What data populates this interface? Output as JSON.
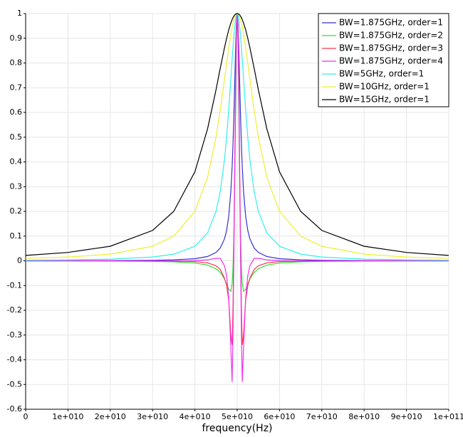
{
  "chart_data": {
    "type": "line",
    "x_label": "frequency(Hz)",
    "x": [
      0,
      10000000000.0,
      20000000000.0,
      30000000000.0,
      35000000000.0,
      40000000000.0,
      43000000000.0,
      45000000000.0,
      46000000000.0,
      47000000000.0,
      47500000000.0,
      48000000000.0,
      48500000000.0,
      48800000000.0,
      49000000000.0,
      49200000000.0,
      49400000000.0,
      49600000000.0,
      49800000000.0,
      50000000000.0,
      50200000000.0,
      50400000000.0,
      50600000000.0,
      50800000000.0,
      51000000000.0,
      51200000000.0,
      51500000000.0,
      52000000000.0,
      52500000000.0,
      53000000000.0,
      54000000000.0,
      55000000000.0,
      57000000000.0,
      60000000000.0,
      65000000000.0,
      70000000000.0,
      80000000000.0,
      90000000000.0,
      100000000000.0
    ],
    "series": [
      {
        "name": "BW=1.875GHz, order=1",
        "color": "#3333cc",
        "values": [
          0.00035,
          0.00055,
          0.001,
          0.0022,
          0.0039,
          0.0087,
          0.0176,
          0.034,
          0.052,
          0.089,
          0.123,
          0.18,
          0.281,
          0.379,
          0.468,
          0.579,
          0.709,
          0.846,
          0.957,
          1,
          0.957,
          0.846,
          0.709,
          0.579,
          0.468,
          0.379,
          0.281,
          0.18,
          0.123,
          0.089,
          0.052,
          0.034,
          0.0176,
          0.0087,
          0.0039,
          0.0022,
          0.001,
          0.00055,
          0.00035
        ]
      },
      {
        "name": "BW=1.875GHz, order=2",
        "color": "#33dd33",
        "values": [
          -0.00035,
          -0.00055,
          -0.001,
          -0.0022,
          -0.0039,
          -0.0086,
          -0.017,
          -0.032,
          -0.047,
          -0.073,
          -0.093,
          -0.115,
          -0.123,
          -0.092,
          -0.03,
          0.091,
          0.297,
          0.586,
          0.873,
          1,
          0.873,
          0.586,
          0.297,
          0.091,
          -0.03,
          -0.092,
          -0.123,
          -0.115,
          -0.093,
          -0.073,
          -0.047,
          -0.032,
          -0.017,
          -0.0086,
          -0.0039,
          -0.0022,
          -0.001,
          -0.00055,
          -0.00035
        ]
      },
      {
        "name": "BW=1.875GHz, order=3",
        "color": "#ff3355",
        "values": [
          0,
          0,
          0,
          -0.0005,
          -0.001,
          -0.003,
          -0.008,
          -0.02,
          -0.035,
          -0.07,
          -0.1,
          -0.16,
          -0.3,
          -0.34,
          -0.2,
          0.05,
          0.35,
          0.7,
          0.93,
          1,
          0.93,
          0.7,
          0.35,
          0.05,
          -0.2,
          -0.34,
          -0.3,
          -0.16,
          -0.1,
          -0.07,
          -0.035,
          -0.02,
          -0.008,
          -0.003,
          -0.001,
          -0.0005,
          0,
          0,
          0
        ]
      },
      {
        "name": "BW=1.875GHz, order=4",
        "color": "#ee33ee",
        "values": [
          0,
          0,
          0,
          0,
          0,
          0.001,
          0.004,
          0.01,
          0.01,
          -0.02,
          -0.06,
          -0.15,
          -0.35,
          -0.49,
          -0.3,
          0,
          0.3,
          0.66,
          0.92,
          1,
          0.92,
          0.66,
          0.3,
          0,
          -0.3,
          -0.49,
          -0.35,
          -0.15,
          -0.06,
          -0.02,
          0.01,
          0.01,
          0.004,
          0.001,
          0,
          0,
          0,
          0,
          0
        ]
      },
      {
        "name": "BW=5GHz, order=1",
        "color": "#33eeee",
        "values": [
          0.0025,
          0.0039,
          0.0069,
          0.0154,
          0.027,
          0.059,
          0.113,
          0.2,
          0.281,
          0.41,
          0.5,
          0.61,
          0.735,
          0.813,
          0.862,
          0.907,
          0.946,
          0.975,
          0.994,
          1,
          0.994,
          0.975,
          0.946,
          0.907,
          0.862,
          0.813,
          0.735,
          0.61,
          0.5,
          0.41,
          0.281,
          0.2,
          0.113,
          0.059,
          0.027,
          0.0154,
          0.0069,
          0.0039,
          0.0025
        ]
      },
      {
        "name": "BW=10GHz, order=1",
        "color": "#eeee33",
        "values": [
          0.0099,
          0.0154,
          0.027,
          0.059,
          0.1,
          0.2,
          0.338,
          0.5,
          0.61,
          0.735,
          0.8,
          0.862,
          0.917,
          0.946,
          0.962,
          0.975,
          0.986,
          0.994,
          0.998,
          1,
          0.998,
          0.994,
          0.986,
          0.975,
          0.962,
          0.946,
          0.917,
          0.862,
          0.8,
          0.735,
          0.61,
          0.5,
          0.338,
          0.2,
          0.1,
          0.059,
          0.027,
          0.0154,
          0.0099
        ]
      },
      {
        "name": "BW=15GHz, order=1",
        "color": "#000000",
        "values": [
          0.022,
          0.034,
          0.059,
          0.123,
          0.2,
          0.36,
          0.534,
          0.692,
          0.779,
          0.862,
          0.9,
          0.934,
          0.962,
          0.975,
          0.983,
          0.989,
          0.994,
          0.997,
          0.999,
          1,
          0.999,
          0.997,
          0.994,
          0.989,
          0.983,
          0.975,
          0.962,
          0.934,
          0.9,
          0.862,
          0.779,
          0.692,
          0.534,
          0.36,
          0.2,
          0.123,
          0.059,
          0.034,
          0.022
        ]
      }
    ],
    "xlim": [
      0,
      100000000000.0
    ],
    "xticks": [
      0,
      {
        "value": 10000000000.0,
        "label": "1e+010"
      },
      {
        "value": 20000000000.0,
        "label": "2e+010"
      },
      {
        "value": 30000000000.0,
        "label": "3e+010"
      },
      {
        "value": 40000000000.0,
        "label": "4e+010"
      },
      {
        "value": 50000000000.0,
        "label": "5e+010"
      },
      {
        "value": 60000000000.0,
        "label": "6e+010"
      },
      {
        "value": 70000000000.0,
        "label": "7e+010"
      },
      {
        "value": 80000000000.0,
        "label": "8e+010"
      },
      {
        "value": 90000000000.0,
        "label": "9e+010"
      },
      {
        "value": 100000000000.0,
        "label": "1e+011"
      }
    ],
    "ylim": [
      -0.6,
      1
    ],
    "yticks": [
      -0.6,
      -0.5,
      -0.4,
      -0.3,
      -0.2,
      -0.1,
      0,
      0.1,
      0.2,
      0.3,
      0.4,
      0.5,
      0.6,
      0.7,
      0.8,
      0.9,
      1
    ],
    "grid": true,
    "legend": "upper right"
  }
}
